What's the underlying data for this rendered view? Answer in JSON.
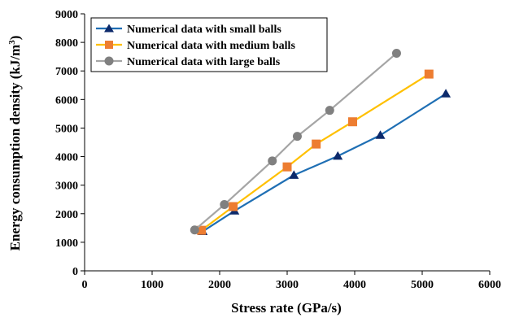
{
  "chart_data": {
    "type": "line",
    "xlabel": "Stress rate (GPa/s)",
    "ylabel": "Energy consumption density (kJ/m",
    "ylabel_superscript": "3",
    "ylabel_suffix": ")",
    "xlim": [
      0,
      6000
    ],
    "ylim": [
      0,
      9000
    ],
    "x_ticks": [
      "0",
      "1000",
      "2000",
      "3000",
      "4000",
      "5000",
      "6000"
    ],
    "y_ticks": [
      "0",
      "1000",
      "2000",
      "3000",
      "4000",
      "5000",
      "6000",
      "7000",
      "8000",
      "9000"
    ],
    "grid": false,
    "legend_position": "top-left",
    "series": [
      {
        "name": "Numerical data with small balls",
        "color": "#1F6FB4",
        "marker_color": "#0D2A6B",
        "marker": "triangle",
        "x": [
          1750,
          2220,
          3100,
          3750,
          4380,
          5350
        ],
        "y": [
          1380,
          2100,
          3350,
          4020,
          4750,
          6200
        ]
      },
      {
        "name": "Numerical data with medium balls",
        "color": "#FFC000",
        "marker_color": "#ED7D31",
        "marker": "square",
        "x": [
          1730,
          2200,
          3000,
          3430,
          3970,
          5100
        ],
        "y": [
          1420,
          2250,
          3640,
          4440,
          5220,
          6890
        ]
      },
      {
        "name": "Numerical data with large balls",
        "color": "#A5A5A5",
        "marker_color": "#808080",
        "marker": "circle",
        "x": [
          1630,
          2070,
          2780,
          3150,
          3630,
          4620
        ],
        "y": [
          1430,
          2320,
          3850,
          4710,
          5620,
          7620
        ]
      }
    ]
  }
}
